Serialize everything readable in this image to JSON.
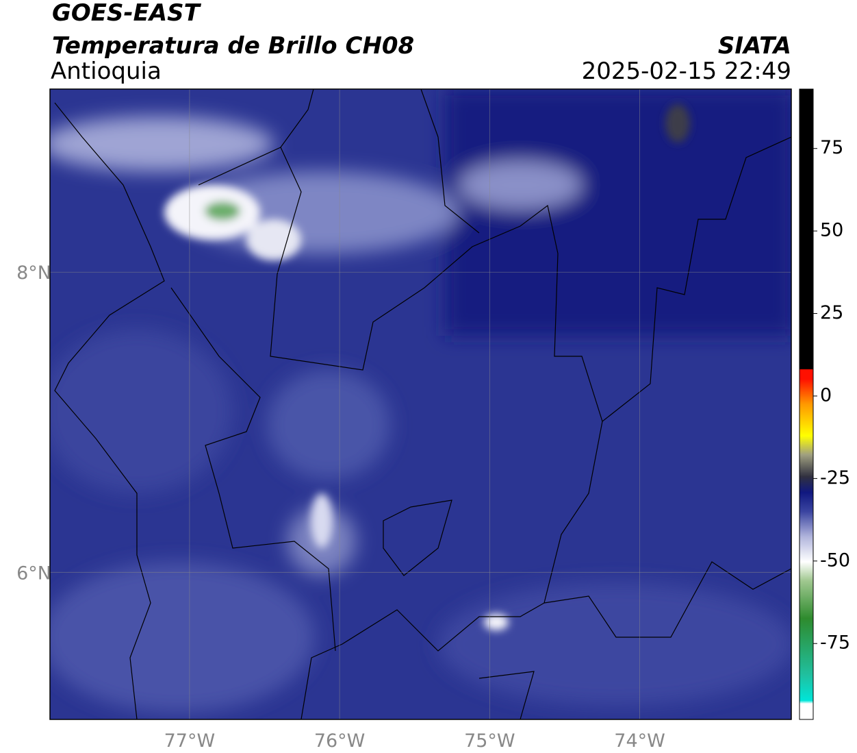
{
  "header": {
    "title": "GOES-EAST",
    "subtitle": "Temperatura de Brillo CH08",
    "region": "Antioquia",
    "source": "SIATA",
    "datetime": "2025-02-15 22:49"
  },
  "map": {
    "xlim": [
      -77.93,
      -72.99
    ],
    "ylim": [
      5.02,
      9.22
    ],
    "xticks": [
      {
        "value": -77,
        "label": "77°W"
      },
      {
        "value": -76,
        "label": "76°W"
      },
      {
        "value": -75,
        "label": "75°W"
      },
      {
        "value": -74,
        "label": "74°W"
      }
    ],
    "yticks": [
      {
        "value": 8,
        "label": "8°N"
      },
      {
        "value": 6,
        "label": "6°N"
      }
    ],
    "grid": true
  },
  "colorbar": {
    "lim": [
      -98,
      93
    ],
    "ticks": [
      75,
      50,
      25,
      0,
      -25,
      -50,
      -75
    ]
  }
}
